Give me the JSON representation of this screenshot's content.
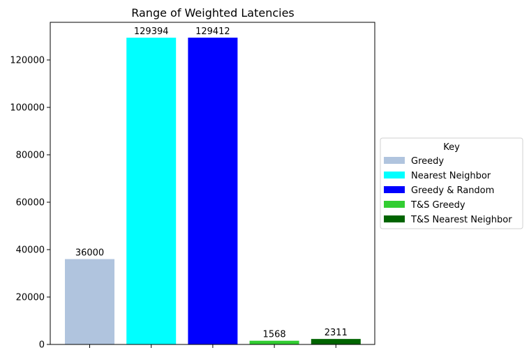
{
  "chart_data": {
    "type": "bar",
    "title": "Range of Weighted Latencies",
    "xlabel": "",
    "ylabel": "",
    "categories": [
      "Greedy",
      "Nearest Neighbor",
      "Greedy & Random",
      "T&S Greedy",
      "T&S Nearest Neighbor"
    ],
    "values": [
      36000,
      129394,
      129412,
      1568,
      2311
    ],
    "colors": [
      "#b0c4de",
      "#00ffff",
      "#0000ff",
      "#32cd32",
      "#006400"
    ],
    "ylim": [
      0,
      135880
    ],
    "yticks": [
      0,
      20000,
      40000,
      60000,
      80000,
      100000,
      120000
    ],
    "grid": false,
    "data_labels": true,
    "legend": {
      "title": "Key",
      "placement": "center-right, outside plot",
      "entries": [
        "Greedy",
        "Nearest Neighbor",
        "Greedy & Random",
        "T&S Greedy",
        "T&S Nearest Neighbor"
      ]
    }
  }
}
